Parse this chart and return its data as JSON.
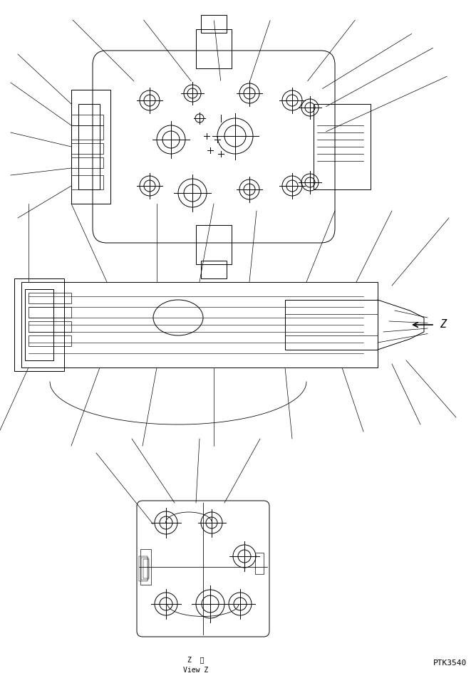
{
  "bg_color": "#ffffff",
  "line_color": "#000000",
  "line_width": 0.7,
  "fig_width": 6.68,
  "fig_height": 9.66,
  "dpi": 100,
  "label_ptk": "PTK3540",
  "label_view_jp": "Z  視",
  "label_view_en": "View Z",
  "arrow_label": "Z"
}
